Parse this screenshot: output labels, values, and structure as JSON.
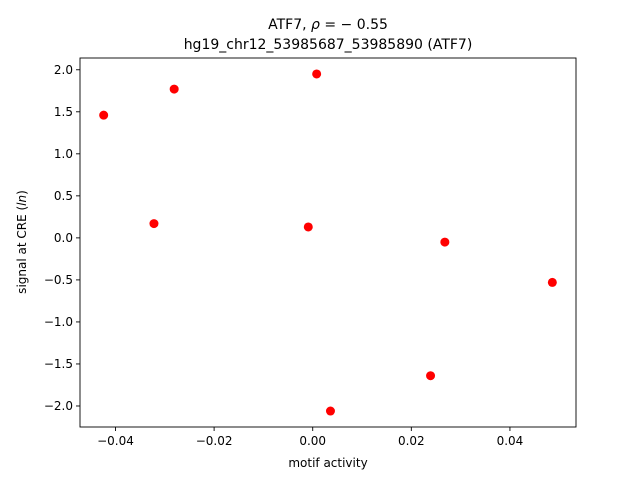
{
  "chart_data": {
    "type": "scatter",
    "title_line1_prefix": "ATF7, ",
    "title_rho_symbol": "ρ",
    "title_rho_value": " = − 0.55",
    "title_line2": "hg19_chr12_53985687_53985890 (ATF7)",
    "xlabel": "motif activity",
    "ylabel_prefix": "signal at CRE (",
    "ylabel_italic": "ln",
    "ylabel_suffix": ")",
    "xlim": [
      -0.0472,
      0.0534
    ],
    "ylim": [
      -2.25,
      2.14
    ],
    "xticks": [
      -0.04,
      -0.02,
      0.0,
      0.02,
      0.04
    ],
    "xtick_labels": [
      "−0.04",
      "−0.02",
      "0.00",
      "0.02",
      "0.04"
    ],
    "yticks": [
      -2.0,
      -1.5,
      -1.0,
      -0.5,
      0.0,
      0.5,
      1.0,
      1.5,
      2.0
    ],
    "ytick_labels": [
      "−2.0",
      "−1.5",
      "−1.0",
      "−0.5",
      "0.0",
      "0.5",
      "1.0",
      "1.5",
      "2.0"
    ],
    "marker_color": "#ff0000",
    "points": [
      {
        "x": -0.0424,
        "y": 1.46
      },
      {
        "x": -0.0281,
        "y": 1.77
      },
      {
        "x": -0.0322,
        "y": 0.17
      },
      {
        "x": 0.0008,
        "y": 1.95
      },
      {
        "x": -0.0009,
        "y": 0.13
      },
      {
        "x": 0.0036,
        "y": -2.06
      },
      {
        "x": 0.0268,
        "y": -0.05
      },
      {
        "x": 0.0239,
        "y": -1.64
      },
      {
        "x": 0.0486,
        "y": -0.53
      }
    ]
  }
}
